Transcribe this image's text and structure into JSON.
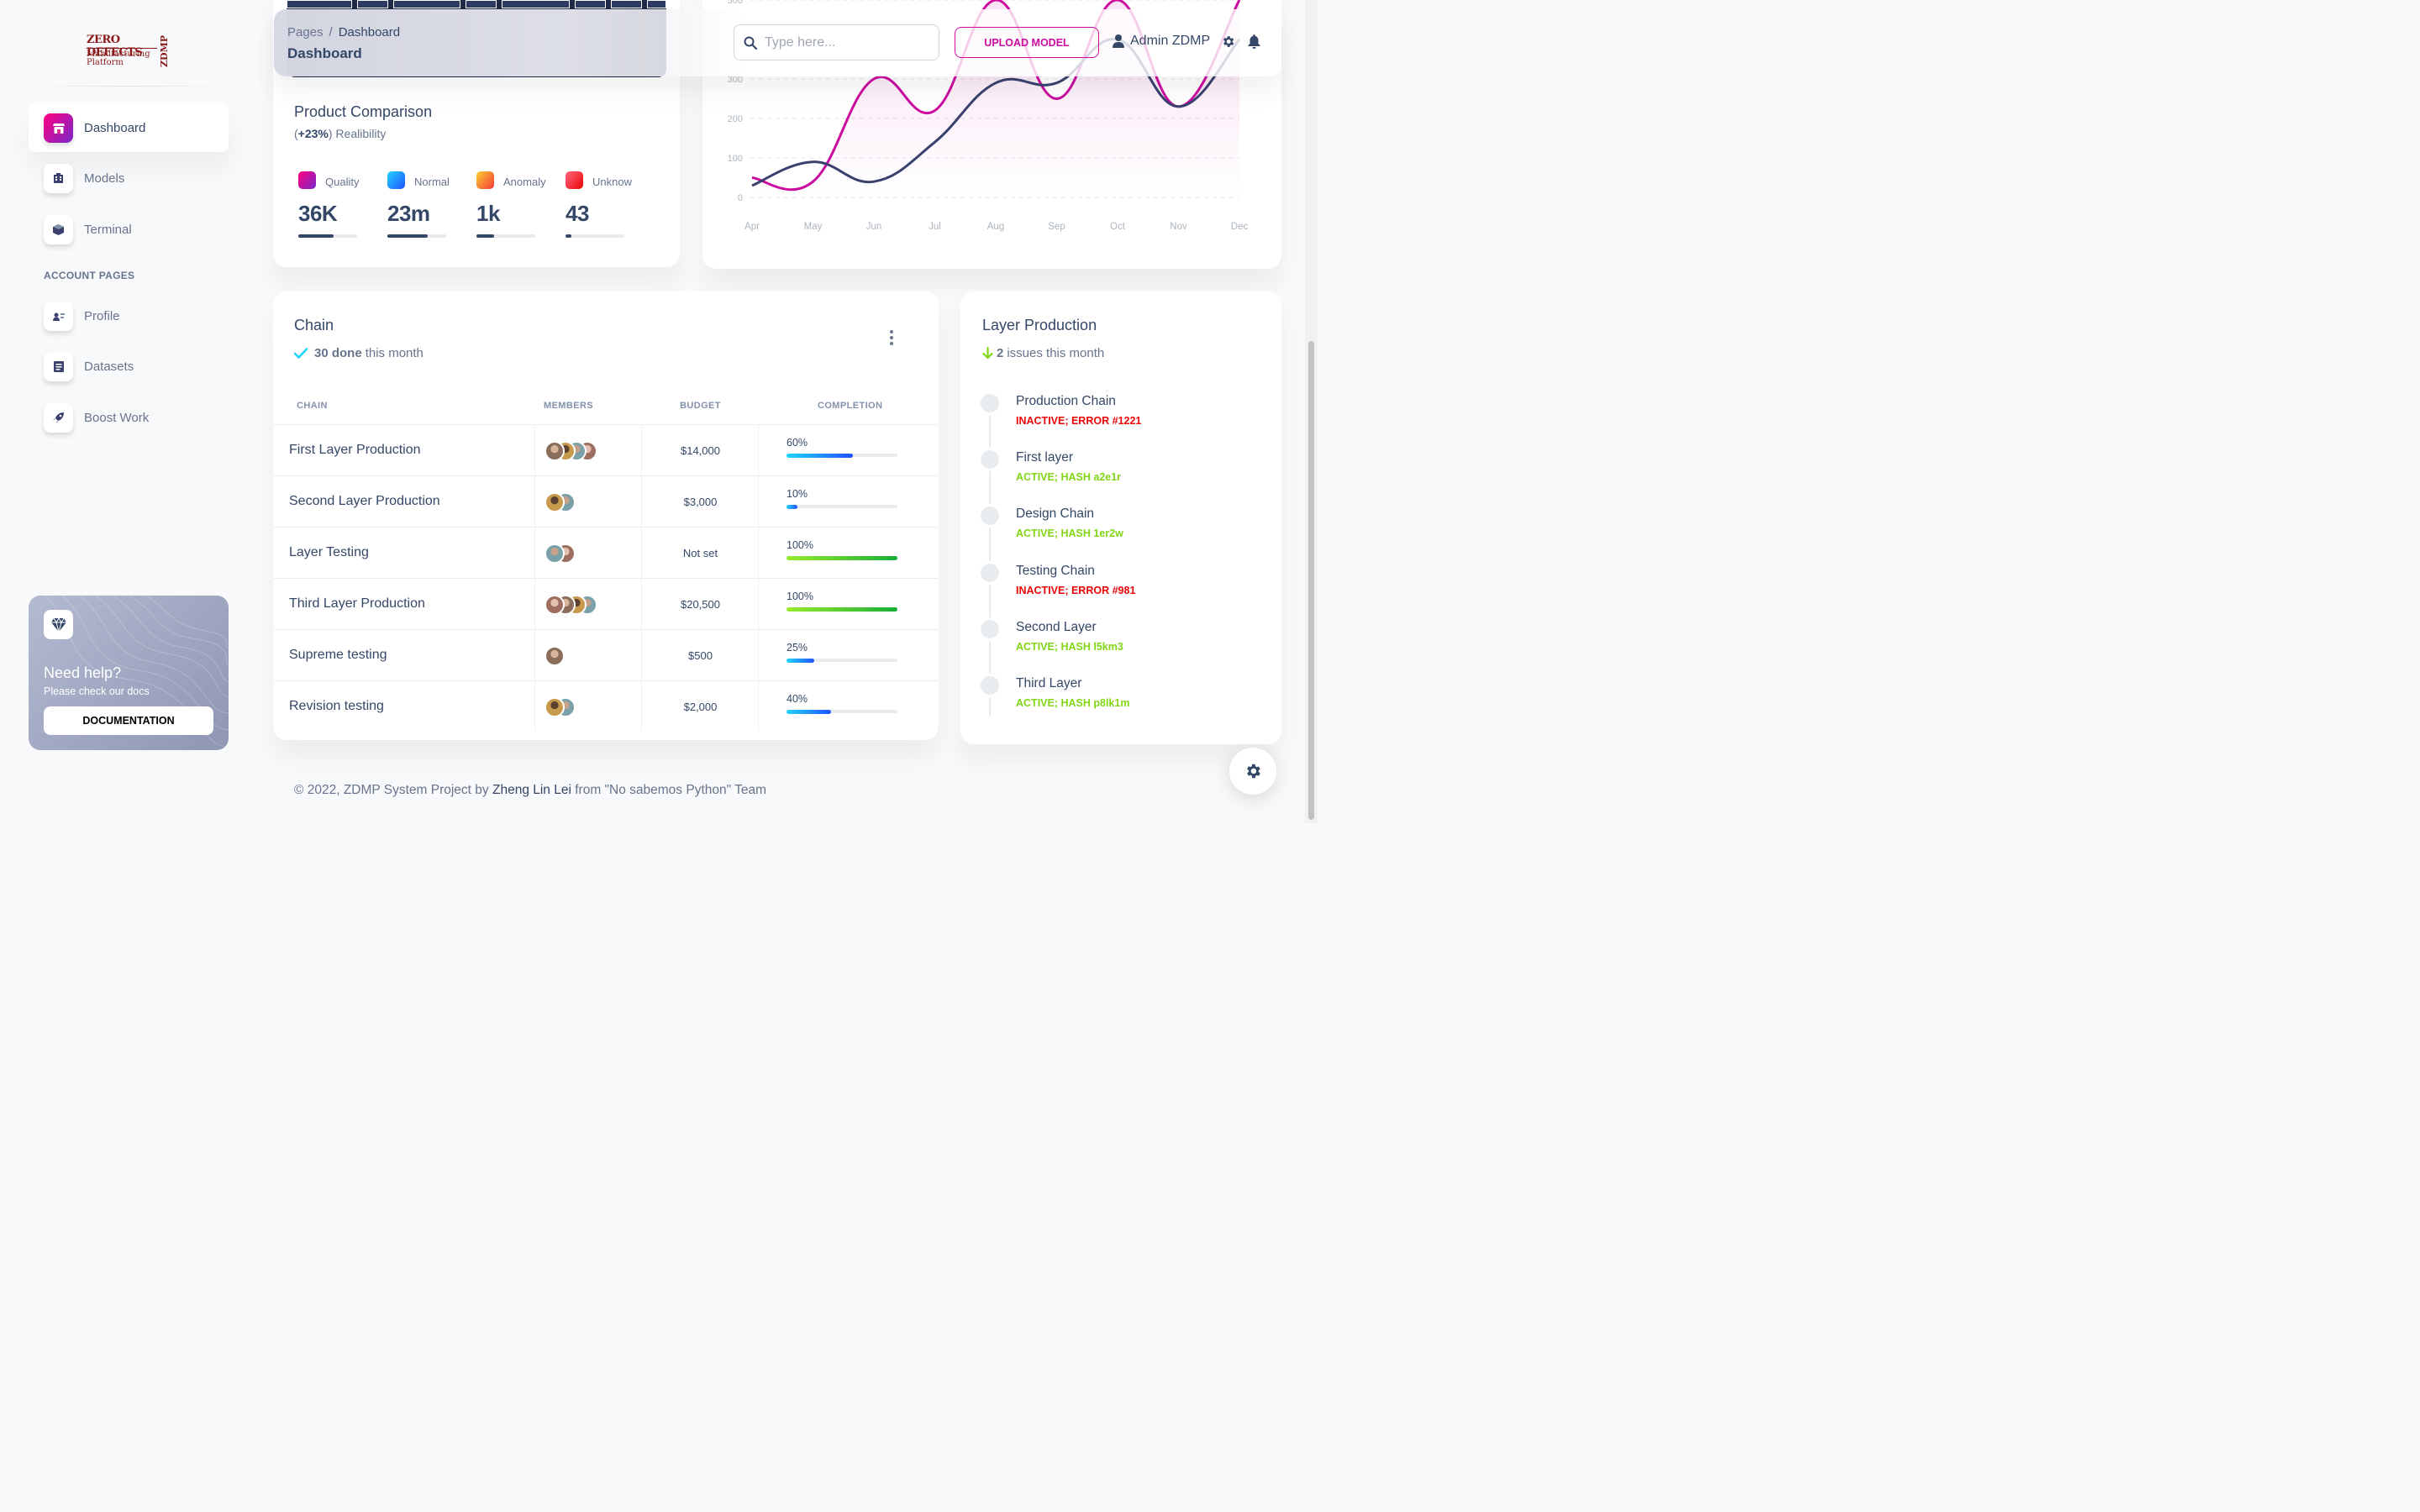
{
  "brand": {
    "line1": "ZERO DEFECTS",
    "line2": "Manufacturing",
    "line3": "Platform",
    "side": "ZDMP"
  },
  "sidebar": {
    "items": [
      {
        "label": "Dashboard",
        "icon": "shop-icon"
      },
      {
        "label": "Models",
        "icon": "office-icon"
      },
      {
        "label": "Terminal",
        "icon": "box-3d-icon"
      }
    ],
    "section_title": "ACCOUNT PAGES",
    "account_items": [
      {
        "label": "Profile",
        "icon": "user-card-icon"
      },
      {
        "label": "Datasets",
        "icon": "document-icon"
      },
      {
        "label": "Boost Work",
        "icon": "rocket-icon"
      }
    ],
    "help": {
      "title": "Need help?",
      "subtitle": "Please check our docs",
      "button": "DOCUMENTATION",
      "icon": "diamond-icon"
    }
  },
  "header": {
    "breadcrumb_root": "Pages",
    "breadcrumb_sep": "/",
    "breadcrumb_current": "Dashboard",
    "title": "Dashboard",
    "search_placeholder": "Type here...",
    "upload_button": "UPLOAD MODEL",
    "user_name": "Admin ZDMP"
  },
  "product_comparison": {
    "title": "Product Comparison",
    "sub_open": "(",
    "delta": "+23%",
    "sub_close": ") Realibility",
    "metrics": [
      {
        "label": "Quality",
        "value": "36K",
        "progress": 0.6,
        "color1": "#7928ca",
        "color2": "#ff0080"
      },
      {
        "label": "Normal",
        "value": "23m",
        "progress": 0.68,
        "color1": "#2152ff",
        "color2": "#21d4fd"
      },
      {
        "label": "Anomaly",
        "value": "1k",
        "progress": 0.3,
        "color1": "#f53939",
        "color2": "#fbcf33"
      },
      {
        "label": "Unknow",
        "value": "43",
        "progress": 0.1,
        "color1": "#ea0606",
        "color2": "#ff667c"
      }
    ]
  },
  "chart_data": {
    "type": "line",
    "categories": [
      "Apr",
      "May",
      "Jun",
      "Jul",
      "Aug",
      "Sep",
      "Oct",
      "Nov",
      "Dec"
    ],
    "yticks": [
      0,
      100,
      200,
      300,
      500
    ],
    "ylim": [
      0,
      500
    ],
    "series": [
      {
        "color": "#cb0c9f",
        "values": [
          50,
          40,
          300,
          220,
          500,
          250,
          500,
          230,
          500
        ]
      },
      {
        "color": "#3a416f",
        "values": [
          30,
          90,
          40,
          140,
          290,
          290,
          400,
          230,
          400
        ]
      }
    ]
  },
  "chain": {
    "title": "Chain",
    "done_count": "30 done",
    "done_suffix": "this month",
    "columns": [
      "CHAIN",
      "MEMBERS",
      "BUDGET",
      "COMPLETION"
    ],
    "rows": [
      {
        "name": "First Layer Production",
        "members": 4,
        "budget": "$14,000",
        "completion": "60%",
        "progress": 0.6,
        "color": "info"
      },
      {
        "name": "Second Layer Production",
        "members": 2,
        "budget": "$3,000",
        "completion": "10%",
        "progress": 0.1,
        "color": "info"
      },
      {
        "name": "Layer Testing",
        "members": 2,
        "budget": "Not set",
        "completion": "100%",
        "progress": 1.0,
        "color": "success"
      },
      {
        "name": "Third Layer Production",
        "members": 4,
        "budget": "$20,500",
        "completion": "100%",
        "progress": 1.0,
        "color": "success"
      },
      {
        "name": "Supreme testing",
        "members": 1,
        "budget": "$500",
        "completion": "25%",
        "progress": 0.25,
        "color": "info"
      },
      {
        "name": "Revision testing",
        "members": 2,
        "budget": "$2,000",
        "completion": "40%",
        "progress": 0.4,
        "color": "info"
      }
    ]
  },
  "layer_production": {
    "title": "Layer Production",
    "issues_count": "2",
    "issues_suffix": "issues this month",
    "items": [
      {
        "name": "Production Chain",
        "status": "INACTIVE; ERROR #1221",
        "state": "error"
      },
      {
        "name": "First layer",
        "status": "ACTIVE; HASH a2e1r",
        "state": "ok"
      },
      {
        "name": "Design Chain",
        "status": "ACTIVE; HASH 1er2w",
        "state": "ok"
      },
      {
        "name": "Testing Chain",
        "status": "INACTIVE; ERROR #981",
        "state": "error"
      },
      {
        "name": "Second Layer",
        "status": "ACTIVE; HASH l5km3",
        "state": "ok"
      },
      {
        "name": "Third Layer",
        "status": "ACTIVE; HASH p8lk1m",
        "state": "ok"
      }
    ]
  },
  "footer": {
    "prefix": "© 2022, ZDMP System Project by",
    "author": "Zheng Lin Lei",
    "suffix": "from \"No sabemos Python\" Team"
  },
  "colors": {
    "accent": "#cb0c9f",
    "dark": "#344767",
    "muted": "#67748e",
    "error": "#ea0606",
    "ok": "#82d616"
  }
}
